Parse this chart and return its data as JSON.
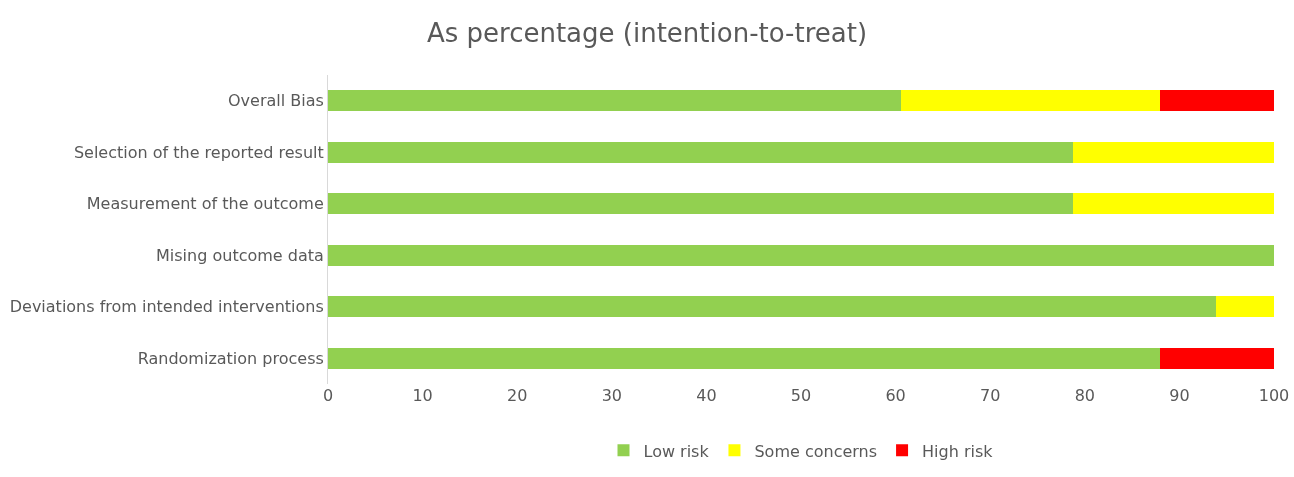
{
  "chart_data": {
    "type": "bar",
    "orientation": "horizontal",
    "stacked": true,
    "title": "As percentage (intention-to-treat)",
    "categories": [
      "Overall Bias",
      "Selection of the reported result",
      "Measurement of the outcome",
      "Mising outcome data",
      "Deviations from intended interventions",
      "Randomization process"
    ],
    "series": [
      {
        "name": "Low risk",
        "color": "#92d050",
        "values": [
          60.6,
          78.8,
          78.8,
          100,
          93.9,
          87.9
        ]
      },
      {
        "name": "Some concerns",
        "color": "#ffff00",
        "values": [
          27.3,
          21.2,
          21.2,
          0,
          6.1,
          0
        ]
      },
      {
        "name": "High risk",
        "color": "#ff0000",
        "values": [
          12.1,
          0,
          0,
          0,
          0,
          12.1
        ]
      }
    ],
    "xlim": [
      0,
      100
    ],
    "xticks": [
      0,
      10,
      20,
      30,
      40,
      50,
      60,
      70,
      80,
      90,
      100
    ],
    "grid": false,
    "legend": "bottom"
  }
}
